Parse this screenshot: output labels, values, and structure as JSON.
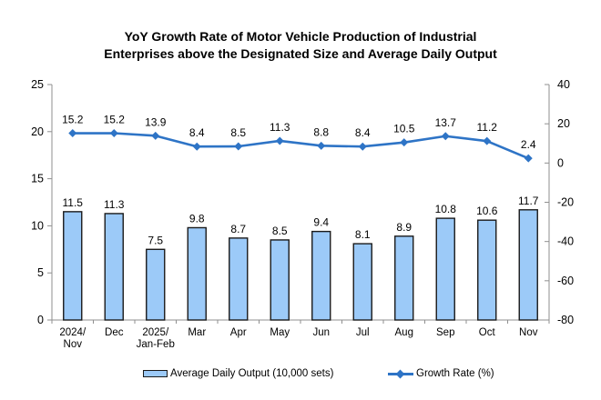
{
  "chart_data": {
    "type": "bar",
    "combo_overlay": "line",
    "title": "YoY Growth Rate of Motor Vehicle Production of Industrial Enterprises above the Designated Size and Average Daily Output",
    "title_lines": [
      "YoY Growth Rate of Motor Vehicle Production of Industrial",
      "Enterprises above the Designated Size and Average Daily Output"
    ],
    "categories": [
      "2024/\nNov",
      "Dec",
      "2025/\nJan-Feb",
      "Mar",
      "Apr",
      "May",
      "Jun",
      "Jul",
      "Aug",
      "Sep",
      "Oct",
      "Nov"
    ],
    "series": [
      {
        "name": "Average Daily Output (10,000 sets)",
        "type": "bar",
        "axis": "left",
        "color": "#9CCAF8",
        "border_color": "#1a1a1a",
        "values": [
          11.5,
          11.3,
          7.5,
          9.8,
          8.7,
          8.5,
          9.4,
          8.1,
          8.9,
          10.8,
          10.6,
          11.7
        ]
      },
      {
        "name": "Growth Rate (%)",
        "type": "line",
        "axis": "right",
        "color": "#2E74C6",
        "marker": "diamond",
        "values": [
          15.2,
          15.2,
          13.9,
          8.4,
          8.5,
          11.3,
          8.8,
          8.4,
          10.5,
          13.7,
          11.2,
          2.4
        ]
      }
    ],
    "left_axis": {
      "min": 0,
      "max": 25,
      "step": 5,
      "ticks": [
        "25",
        "20",
        "15",
        "10",
        "5",
        "0"
      ]
    },
    "right_axis": {
      "min": -80,
      "max": 40,
      "step": 20,
      "ticks": [
        "40",
        "20",
        "0",
        "-20",
        "-40",
        "-60",
        "-80"
      ]
    },
    "grid": false,
    "legend_position": "bottom",
    "axis_color": "#8F8F8F",
    "text_color": "#000000",
    "background_color": "#FFFFFF"
  }
}
